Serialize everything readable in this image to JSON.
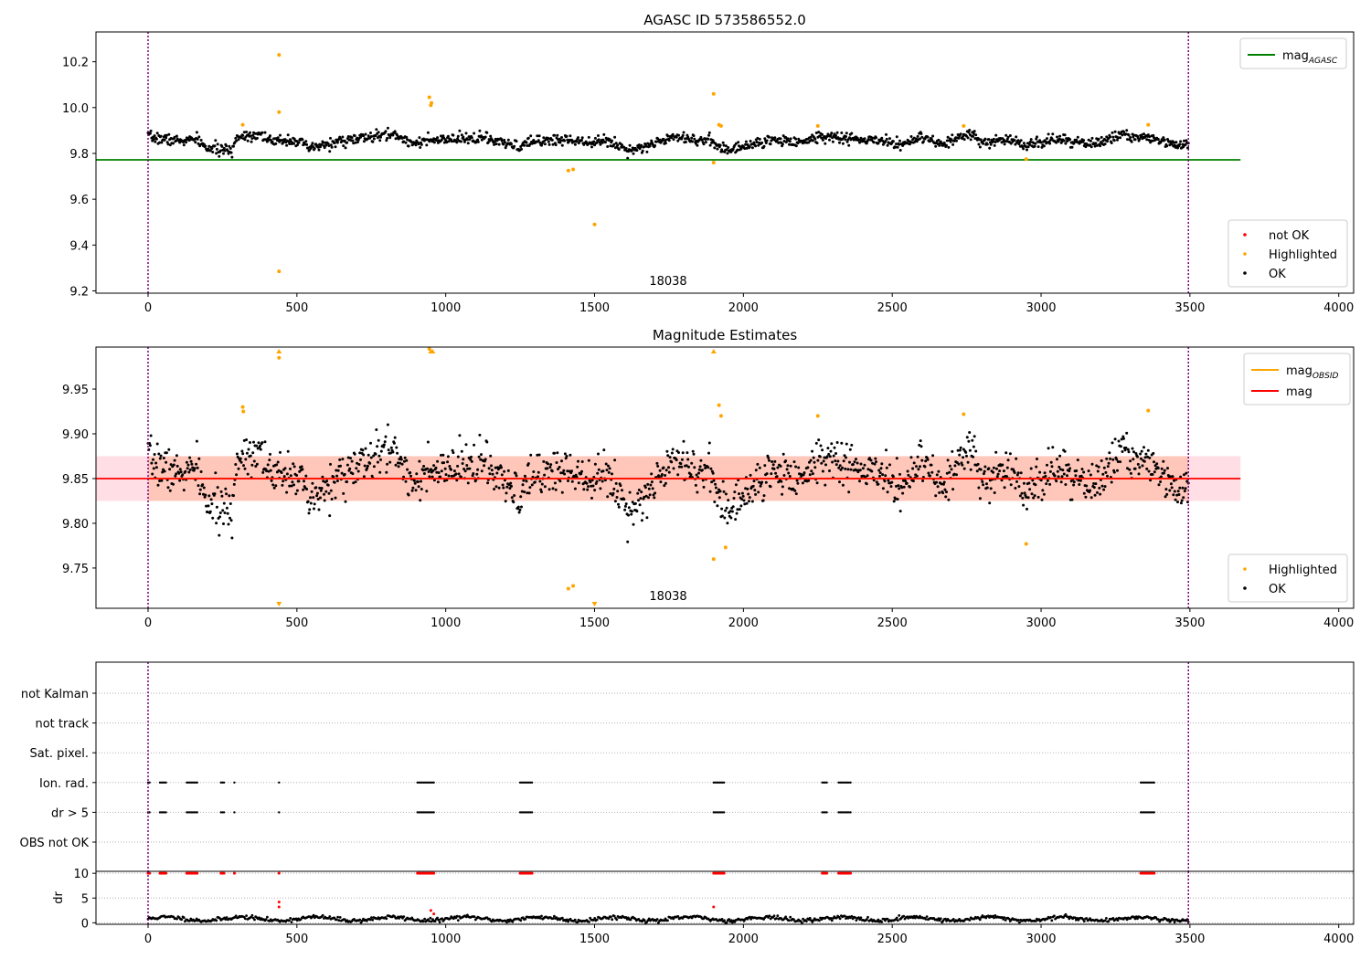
{
  "chart_data": [
    {
      "type": "scatter",
      "title": "AGASC ID 573586552.0",
      "obsid_label": "18038",
      "xlim": [
        -175,
        4050
      ],
      "ylim": [
        9.19,
        10.33
      ],
      "x_ticks": [
        0,
        500,
        1000,
        1500,
        2000,
        2500,
        3000,
        3500,
        4000
      ],
      "y_ticks": [
        9.2,
        9.4,
        9.6,
        9.8,
        10.0,
        10.2
      ],
      "obs_boundaries": [
        0,
        3495
      ],
      "lines": [
        {
          "name": "mag_AGASC",
          "y": 9.772,
          "x_range": [
            -175,
            3670
          ],
          "color": "#008000"
        }
      ],
      "legend_lines": [
        {
          "name": "mag",
          "sub": "AGASC",
          "color": "#008000"
        }
      ],
      "legend_points": [
        {
          "name": "not OK",
          "color": "#ff0000"
        },
        {
          "name": "Highlighted",
          "color": "#ffa500"
        },
        {
          "name": "OK",
          "color": "#000000"
        }
      ],
      "ok_series": {
        "x_range": [
          0,
          3495
        ],
        "count": 1450,
        "noise": 0.012,
        "seed": 7,
        "baseline": [
          [
            0,
            9.872
          ],
          [
            100,
            9.855
          ],
          [
            170,
            9.86
          ],
          [
            190,
            9.825
          ],
          [
            280,
            9.81
          ],
          [
            300,
            9.875
          ],
          [
            380,
            9.885
          ],
          [
            420,
            9.845
          ],
          [
            450,
            9.86
          ],
          [
            500,
            9.858
          ],
          [
            540,
            9.82
          ],
          [
            600,
            9.84
          ],
          [
            680,
            9.86
          ],
          [
            760,
            9.872
          ],
          [
            820,
            9.885
          ],
          [
            880,
            9.85
          ],
          [
            960,
            9.855
          ],
          [
            1060,
            9.862
          ],
          [
            1120,
            9.87
          ],
          [
            1200,
            9.84
          ],
          [
            1250,
            9.83
          ],
          [
            1300,
            9.855
          ],
          [
            1400,
            9.86
          ],
          [
            1480,
            9.855
          ],
          [
            1560,
            9.85
          ],
          [
            1610,
            9.815
          ],
          [
            1700,
            9.84
          ],
          [
            1760,
            9.88
          ],
          [
            1840,
            9.86
          ],
          [
            1900,
            9.85
          ],
          [
            1950,
            9.81
          ],
          [
            2020,
            9.84
          ],
          [
            2120,
            9.86
          ],
          [
            2200,
            9.85
          ],
          [
            2260,
            9.875
          ],
          [
            2320,
            9.87
          ],
          [
            2380,
            9.86
          ],
          [
            2460,
            9.855
          ],
          [
            2540,
            9.84
          ],
          [
            2600,
            9.87
          ],
          [
            2660,
            9.835
          ],
          [
            2720,
            9.865
          ],
          [
            2760,
            9.885
          ],
          [
            2800,
            9.845
          ],
          [
            2880,
            9.86
          ],
          [
            2960,
            9.84
          ],
          [
            3050,
            9.86
          ],
          [
            3120,
            9.85
          ],
          [
            3180,
            9.84
          ],
          [
            3260,
            9.88
          ],
          [
            3320,
            9.87
          ],
          [
            3380,
            9.87
          ],
          [
            3450,
            9.84
          ],
          [
            3495,
            9.83
          ]
        ]
      },
      "highlighted_points": [
        [
          318,
          9.925
        ],
        [
          440,
          10.23
        ],
        [
          440,
          9.98
        ],
        [
          440,
          9.285
        ],
        [
          945,
          10.045
        ],
        [
          950,
          10.01
        ],
        [
          952,
          10.02
        ],
        [
          1412,
          9.725
        ],
        [
          1428,
          9.73
        ],
        [
          1500,
          9.49
        ],
        [
          1900,
          10.06
        ],
        [
          1900,
          9.76
        ],
        [
          1918,
          9.925
        ],
        [
          1925,
          9.92
        ],
        [
          2250,
          9.92
        ],
        [
          2740,
          9.92
        ],
        [
          2950,
          9.775
        ],
        [
          3360,
          9.925
        ]
      ],
      "not_ok_points": []
    },
    {
      "type": "scatter",
      "title": "Magnitude Estimates",
      "obsid_label": "18038",
      "xlim": [
        -175,
        4050
      ],
      "ylim": [
        9.705,
        9.997
      ],
      "x_ticks": [
        0,
        500,
        1000,
        1500,
        2000,
        2500,
        3000,
        3500,
        4000
      ],
      "y_ticks": [
        9.75,
        9.8,
        9.85,
        9.9,
        9.95
      ],
      "obs_boundaries": [
        0,
        3495
      ],
      "lines": [
        {
          "name": "mag_OBSID",
          "y": 9.85,
          "x_range": [
            0,
            3495
          ],
          "color": "#ffa500"
        },
        {
          "name": "mag",
          "y": 9.85,
          "x_range": [
            -175,
            3670
          ],
          "color": "#ff0000"
        }
      ],
      "bands": [
        {
          "y_range": [
            9.825,
            9.875
          ],
          "x_range": [
            -175,
            3670
          ],
          "color": "#ffc0cb",
          "opacity": 0.5
        },
        {
          "y_range": [
            9.825,
            9.875
          ],
          "x_range": [
            0,
            3495
          ],
          "color": "#ffa07a",
          "opacity": 0.4
        }
      ],
      "legend_lines": [
        {
          "name": "mag",
          "sub": "OBSID",
          "color": "#ffa500"
        },
        {
          "name": "mag",
          "sub": "",
          "color": "#ff0000"
        }
      ],
      "legend_points": [
        {
          "name": "Highlighted",
          "color": "#ffa500"
        },
        {
          "name": "OK",
          "color": "#000000"
        }
      ],
      "ok_series": {
        "same_as_panel": 0,
        "count": 1450,
        "noise": 0.012,
        "seed": 7
      },
      "highlighted_points": [
        [
          318,
          9.93
        ],
        [
          320,
          9.925
        ],
        [
          440,
          9.985
        ],
        [
          945,
          9.995
        ],
        [
          1918,
          9.932
        ],
        [
          1925,
          9.92
        ],
        [
          1900,
          9.76
        ],
        [
          1940,
          9.773
        ],
        [
          1412,
          9.727
        ],
        [
          1428,
          9.73
        ],
        [
          2250,
          9.92
        ],
        [
          2740,
          9.922
        ],
        [
          2950,
          9.777
        ],
        [
          3360,
          9.926
        ]
      ],
      "out_of_range_markers": [
        {
          "x": 440,
          "dir": "up"
        },
        {
          "x": 950,
          "dir": "up"
        },
        {
          "x": 956,
          "dir": "up"
        },
        {
          "x": 1900,
          "dir": "up"
        },
        {
          "x": 440,
          "dir": "down"
        },
        {
          "x": 1500,
          "dir": "down"
        }
      ]
    },
    {
      "type": "scatter",
      "title": "",
      "xlim": [
        -175,
        4050
      ],
      "x_ticks": [
        0,
        500,
        1000,
        1500,
        2000,
        2500,
        3000,
        3500,
        4000
      ],
      "flag_rows": [
        "not Kalman",
        "not track",
        "Sat. pixel.",
        "Ion. rad.",
        "dr > 5",
        "OBS not OK"
      ],
      "flag_points": {
        "Ion. rad.": [
          [
            0,
            5
          ],
          [
            40,
            60
          ],
          [
            130,
            165
          ],
          [
            245,
            255
          ],
          [
            290,
            292
          ],
          [
            440,
            441
          ],
          [
            905,
            960
          ],
          [
            1250,
            1290
          ],
          [
            1900,
            1935
          ],
          [
            2265,
            2280
          ],
          [
            2320,
            2360
          ],
          [
            3335,
            3380
          ]
        ],
        "dr > 5": [
          [
            0,
            5
          ],
          [
            40,
            60
          ],
          [
            130,
            165
          ],
          [
            245,
            255
          ],
          [
            290,
            292
          ],
          [
            440,
            441
          ],
          [
            905,
            960
          ],
          [
            1250,
            1290
          ],
          [
            1900,
            1935
          ],
          [
            2265,
            2280
          ],
          [
            2320,
            2360
          ],
          [
            3335,
            3380
          ]
        ]
      },
      "dr_panel": {
        "ylabel": "dr",
        "ylim": [
          -0.3,
          10.4
        ],
        "y_ticks": [
          0,
          5,
          10
        ],
        "outliers": [
          [
            440,
            4.2
          ],
          [
            440,
            3.2
          ],
          [
            1900,
            3.2
          ],
          [
            950,
            2.5
          ],
          [
            960,
            1.8
          ]
        ],
        "clip_value": 10,
        "clip_color": "#ff0000",
        "baseline_mean": 0.8
      }
    }
  ]
}
